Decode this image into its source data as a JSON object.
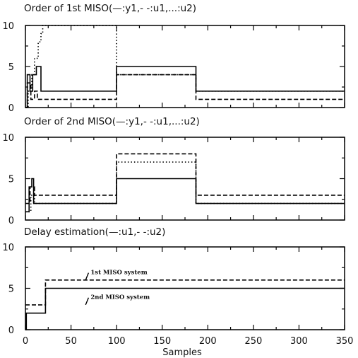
{
  "chart_data": {
    "type": "line",
    "xlabel": "Samples",
    "x_ticks": [
      0,
      50,
      100,
      150,
      200,
      250,
      300,
      350
    ],
    "xlim": [
      0,
      350
    ],
    "panels": [
      {
        "title": "Order of 1st MISO(—:y1,- -:u1,...:u2)",
        "ylim": [
          0,
          10
        ],
        "y_ticks": [
          0,
          5,
          10
        ],
        "series": [
          {
            "name": "y1",
            "style": "solid",
            "x": [
              0,
              2,
              2,
              5,
              5,
              8,
              8,
              12,
              12,
              17,
              17,
              100,
              100,
              187,
              187,
              350
            ],
            "y": [
              0,
              0,
              4,
              4,
              2,
              2,
              4,
              4,
              5,
              5,
              2,
              2,
              5,
              5,
              2,
              2
            ]
          },
          {
            "name": "u1",
            "style": "dashed",
            "x": [
              0,
              2,
              2,
              6,
              6,
              10,
              10,
              13,
              13,
              100,
              100,
              187,
              187,
              350
            ],
            "y": [
              0,
              0,
              3,
              3,
              1,
              1,
              2,
              2,
              1,
              1,
              4,
              4,
              1,
              1
            ]
          },
          {
            "name": "u2",
            "style": "dotted",
            "x": [
              0,
              3,
              3,
              7,
              7,
              10,
              10,
              14,
              14,
              17,
              17,
              19,
              19,
              100,
              100,
              187,
              187,
              350
            ],
            "y": [
              0,
              0,
              2,
              2,
              4,
              4,
              6,
              6,
              8,
              8,
              9,
              9,
              10,
              10,
              4,
              4,
              2,
              2
            ]
          }
        ]
      },
      {
        "title": "Order of 2nd MISO(—:y1,- -:u1,...:u2)",
        "ylim": [
          0,
          10
        ],
        "y_ticks": [
          0,
          5,
          10
        ],
        "series": [
          {
            "name": "y1",
            "style": "solid",
            "x": [
              0,
              4,
              4,
              7,
              7,
              9,
              9,
              100,
              100,
              187,
              187,
              350
            ],
            "y": [
              1,
              1,
              4,
              4,
              5,
              5,
              2,
              2,
              5,
              5,
              2,
              2
            ]
          },
          {
            "name": "u1",
            "style": "dashed",
            "x": [
              0,
              5,
              5,
              10,
              10,
              100,
              100,
              187,
              187,
              350
            ],
            "y": [
              2,
              2,
              4,
              4,
              3,
              3,
              8,
              8,
              3,
              3
            ]
          },
          {
            "name": "u2",
            "style": "dotted",
            "x": [
              0,
              6,
              6,
              10,
              10,
              100,
              100,
              187,
              187,
              350
            ],
            "y": [
              1,
              1,
              3,
              3,
              2,
              2,
              7,
              7,
              2,
              2
            ]
          }
        ]
      },
      {
        "title": "Delay estimation(—:u1,- -:u2)",
        "ylim": [
          0,
          10
        ],
        "y_ticks": [
          0,
          5,
          10
        ],
        "series": [
          {
            "name": "u1",
            "style": "solid",
            "x": [
              0,
              1,
              1,
              22,
              22,
              350
            ],
            "y": [
              0,
              0,
              2,
              2,
              5,
              5
            ]
          },
          {
            "name": "u2",
            "style": "dashed",
            "x": [
              0,
              22,
              22,
              350
            ],
            "y": [
              3,
              3,
              6,
              6
            ]
          }
        ],
        "annotations": [
          {
            "text": "1st MISO system",
            "x": 70,
            "y": 6.7,
            "arrow_to": [
              66,
              6
            ]
          },
          {
            "text": "2nd MISO system",
            "x": 70,
            "y": 3.7,
            "arrow_to": [
              66,
              3
            ]
          }
        ]
      }
    ]
  }
}
